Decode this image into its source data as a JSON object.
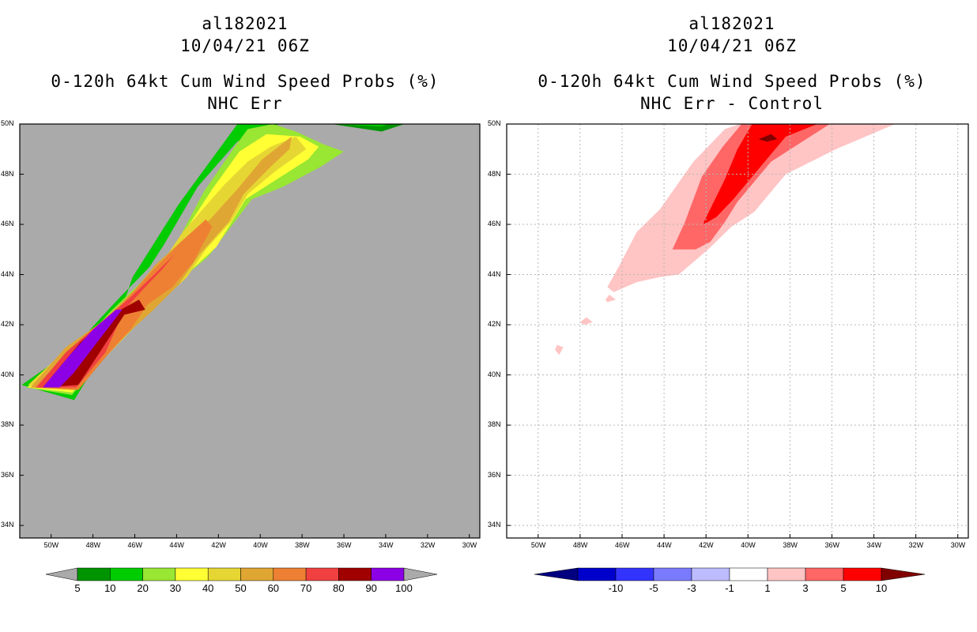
{
  "chart_data": [
    {
      "type": "heatmap",
      "storm_id": "al182021",
      "datetime": "10/04/21 06Z",
      "title": "0-120h 64kt Cum Wind Speed Probs (%)",
      "subtitle": "NHC Err",
      "xlim": [
        -51.5,
        -29.5
      ],
      "ylim": [
        33.5,
        50
      ],
      "x_ticks": [
        {
          "value": -50,
          "label": "50W"
        },
        {
          "value": -48,
          "label": "48W"
        },
        {
          "value": -46,
          "label": "46W"
        },
        {
          "value": -44,
          "label": "44W"
        },
        {
          "value": -42,
          "label": "42W"
        },
        {
          "value": -40,
          "label": "40W"
        },
        {
          "value": -38,
          "label": "38W"
        },
        {
          "value": -36,
          "label": "36W"
        },
        {
          "value": -34,
          "label": "34W"
        },
        {
          "value": -32,
          "label": "32W"
        },
        {
          "value": -30,
          "label": "30W"
        }
      ],
      "y_ticks": [
        {
          "value": 34,
          "label": "34N"
        },
        {
          "value": 36,
          "label": "36N"
        },
        {
          "value": 38,
          "label": "38N"
        },
        {
          "value": 40,
          "label": "40N"
        },
        {
          "value": 42,
          "label": "42N"
        },
        {
          "value": 44,
          "label": "44N"
        },
        {
          "value": 46,
          "label": "46N"
        },
        {
          "value": 48,
          "label": "48N"
        },
        {
          "value": 50,
          "label": "50N"
        }
      ],
      "background": "#aaaaaa",
      "colorbar": {
        "levels": [
          "5",
          "10",
          "20",
          "30",
          "40",
          "50",
          "60",
          "70",
          "80",
          "90",
          "100"
        ],
        "colors": [
          "#009400",
          "#00cc00",
          "#99e633",
          "#ffff33",
          "#e6d633",
          "#e0a633",
          "#ee8033",
          "#f04040",
          "#a00000",
          "#8c00e6"
        ],
        "extend_low_color": "#aaaaaa",
        "extend_high_color": "#aaaaaa"
      },
      "bands": [
        {
          "level": 5,
          "color": "#009400",
          "lon": [
            -51.4,
            -49.0,
            -47.7,
            -46.7,
            -45.3,
            -44.6,
            -43.0,
            -41.1,
            -39.1,
            -36.6,
            -34.2,
            -33.1,
            -37.3,
            -41.0,
            -43.9,
            -46.1,
            -47.2,
            -48.9
          ],
          "lat": [
            39.6,
            41.0,
            42.2,
            43.1,
            44.3,
            45.2,
            47.5,
            49.3,
            50.0,
            50.0,
            49.7,
            50.0,
            50.1,
            50.1,
            46.8,
            43.9,
            41.3,
            39.0
          ]
        },
        {
          "level": 10,
          "color": "#00cc00",
          "lon": [
            -51.4,
            -49.0,
            -47.7,
            -46.7,
            -45.3,
            -44.6,
            -43.0,
            -41.1,
            -39.1,
            -36.6,
            -34.2,
            -33.9,
            -37.3,
            -41.0,
            -43.9,
            -46.1,
            -47.2,
            -48.9
          ],
          "lat": [
            39.6,
            41.0,
            42.2,
            43.1,
            44.3,
            45.2,
            47.5,
            49.3,
            50.0,
            50.0,
            49.9,
            50.0,
            50.1,
            50.1,
            46.8,
            43.9,
            41.3,
            39.0
          ]
        },
        {
          "level": 20,
          "color": "#99e633",
          "lon": [
            -51.2,
            -48.8,
            -47.2,
            -46.2,
            -44.9,
            -44.1,
            -42.7,
            -41.3,
            -40.6,
            -39.4,
            -38.3,
            -37.0,
            -36.0,
            -37.1,
            -38.9,
            -40.4,
            -42.5,
            -43.8,
            -45.1,
            -46.2,
            -47.9,
            -49.0
          ],
          "lat": [
            39.5,
            41.0,
            42.5,
            43.3,
            44.3,
            45.1,
            47.3,
            49.0,
            49.8,
            50.0,
            49.7,
            49.2,
            48.9,
            48.3,
            47.5,
            47.0,
            44.7,
            43.8,
            42.6,
            41.8,
            40.3,
            39.2
          ]
        },
        {
          "level": 30,
          "color": "#ffff33",
          "lon": [
            -51.1,
            -49.2,
            -47.6,
            -46.0,
            -45.0,
            -44.1,
            -42.3,
            -41.0,
            -39.7,
            -38.1,
            -37.2,
            -37.7,
            -39.2,
            -40.7,
            -42.1,
            -43.4,
            -44.8,
            -45.7,
            -47.3,
            -49.0
          ],
          "lat": [
            39.5,
            40.8,
            42.0,
            43.3,
            44.2,
            45.1,
            47.4,
            48.9,
            49.6,
            49.5,
            49.1,
            48.6,
            47.8,
            47.0,
            45.1,
            44.1,
            43.0,
            42.2,
            40.8,
            39.3
          ]
        },
        {
          "level": 40,
          "color": "#e6d633",
          "lon": [
            -51.1,
            -49.3,
            -47.6,
            -46.0,
            -45.0,
            -43.7,
            -41.7,
            -40.6,
            -39.5,
            -38.3,
            -37.8,
            -39.3,
            -40.6,
            -41.4,
            -42.6,
            -43.5,
            -44.9,
            -45.9,
            -47.3,
            -48.9
          ],
          "lat": [
            39.6,
            41.0,
            42.1,
            43.2,
            44.1,
            45.7,
            47.6,
            48.5,
            49.1,
            49.5,
            49.0,
            48.1,
            47.2,
            46.1,
            45.0,
            43.9,
            42.8,
            42.0,
            40.8,
            39.4
          ]
        },
        {
          "level": 50,
          "color": "#e0a633",
          "lon": [
            -51.0,
            -49.3,
            -47.6,
            -46.0,
            -45.0,
            -43.8,
            -42.4,
            -41.1,
            -39.9,
            -38.5,
            -38.6,
            -39.5,
            -40.8,
            -41.5,
            -42.9,
            -43.9,
            -45.1,
            -46.4,
            -47.4,
            -48.9
          ],
          "lat": [
            39.5,
            41.1,
            42.1,
            43.4,
            44.4,
            45.3,
            46.2,
            47.4,
            48.6,
            49.5,
            49.0,
            48.3,
            47.2,
            46.1,
            44.8,
            43.6,
            42.6,
            41.6,
            40.8,
            39.4
          ]
        },
        {
          "level": 60,
          "color": "#ee8033",
          "lon": [
            -50.8,
            -49.3,
            -47.5,
            -46.2,
            -45.1,
            -43.8,
            -42.6,
            -42.3,
            -43.2,
            -44.2,
            -45.4,
            -46.2,
            -47.3,
            -48.7
          ],
          "lat": [
            39.5,
            40.8,
            42.0,
            43.2,
            44.2,
            45.3,
            46.2,
            45.9,
            44.5,
            43.5,
            42.8,
            41.8,
            40.8,
            39.4
          ]
        },
        {
          "level": 70,
          "color": "#f04040",
          "lon": [
            -50.7,
            -49.3,
            -47.9,
            -46.2,
            -45.2,
            -44.1,
            -44.7,
            -45.5,
            -46.5,
            -47.4,
            -48.8
          ],
          "lat": [
            39.5,
            40.9,
            41.9,
            43.1,
            43.9,
            44.8,
            44.2,
            43.5,
            42.6,
            40.9,
            39.5
          ]
        },
        {
          "level": 80,
          "color": "#a00000",
          "lon": [
            -50.4,
            -48.6,
            -47.1,
            -45.8,
            -45.5,
            -46.5,
            -47.6,
            -48.7
          ],
          "lat": [
            39.5,
            41.3,
            42.4,
            43.0,
            42.6,
            42.4,
            41.0,
            39.6
          ]
        },
        {
          "level": 100,
          "color": "#8c00e6",
          "lon": [
            -50.4,
            -49.1,
            -48.0,
            -46.9,
            -46.6,
            -47.8,
            -48.9,
            -49.6
          ],
          "lat": [
            39.5,
            40.8,
            41.8,
            42.6,
            42.6,
            41.3,
            40.1,
            39.5
          ]
        }
      ]
    },
    {
      "type": "heatmap",
      "storm_id": "al182021",
      "datetime": "10/04/21 06Z",
      "title": "0-120h 64kt Cum Wind Speed Probs (%)",
      "subtitle": "NHC Err - Control",
      "xlim": [
        -51.5,
        -29.5
      ],
      "ylim": [
        33.5,
        50
      ],
      "x_ticks": [
        {
          "value": -50,
          "label": "50W"
        },
        {
          "value": -48,
          "label": "48W"
        },
        {
          "value": -46,
          "label": "46W"
        },
        {
          "value": -44,
          "label": "44W"
        },
        {
          "value": -42,
          "label": "42W"
        },
        {
          "value": -40,
          "label": "40W"
        },
        {
          "value": -38,
          "label": "38W"
        },
        {
          "value": -36,
          "label": "36W"
        },
        {
          "value": -34,
          "label": "34W"
        },
        {
          "value": -32,
          "label": "32W"
        },
        {
          "value": -30,
          "label": "30W"
        }
      ],
      "y_ticks": [
        {
          "value": 34,
          "label": "34N"
        },
        {
          "value": 36,
          "label": "36N"
        },
        {
          "value": 38,
          "label": "38N"
        },
        {
          "value": 40,
          "label": "40N"
        },
        {
          "value": 42,
          "label": "42N"
        },
        {
          "value": 44,
          "label": "44N"
        },
        {
          "value": 46,
          "label": "46N"
        },
        {
          "value": 48,
          "label": "48N"
        },
        {
          "value": 50,
          "label": "50N"
        }
      ],
      "grid": true,
      "background": "#ffffff",
      "colorbar": {
        "levels": [
          "-10",
          "-5",
          "-3",
          "-1",
          "1",
          "3",
          "5",
          "10"
        ],
        "colors": [
          "#0000cc",
          "#3333ff",
          "#7a7aff",
          "#bcbcff",
          "#ffffff",
          "#ffc4c4",
          "#ff6666",
          "#ff0000"
        ],
        "extend_low_color": "#000080",
        "extend_high_color": "#800000"
      },
      "bands": [
        {
          "level": 1,
          "color": "#ffc4c4",
          "lon": [
            -46.7,
            -46.1,
            -45.3,
            -44.2,
            -42.6,
            -41.1,
            -40.4,
            -38.7,
            -36.6,
            -33.0,
            -35.8,
            -38.2,
            -39.7,
            -40.8,
            -41.9,
            -43.3,
            -44.2,
            -45.3,
            -46.4
          ],
          "lat": [
            43.5,
            44.4,
            45.7,
            46.6,
            48.5,
            49.8,
            50.0,
            50.0,
            50.0,
            50.0,
            49.0,
            48.0,
            46.5,
            45.9,
            45.0,
            44.0,
            43.9,
            43.7,
            43.3
          ]
        },
        {
          "level": 3,
          "color": "#ff6666",
          "lon": [
            -43.6,
            -43.0,
            -42.2,
            -41.2,
            -40.3,
            -38.6,
            -36.1,
            -38.9,
            -40.5,
            -41.1,
            -41.8,
            -42.5,
            -43.2
          ],
          "lat": [
            45.0,
            46.1,
            47.9,
            49.1,
            50.0,
            50.0,
            50.0,
            48.5,
            46.9,
            46.1,
            45.3,
            45.0,
            45.0
          ]
        },
        {
          "level": 5,
          "color": "#ff0000",
          "lon": [
            -42.1,
            -41.1,
            -40.5,
            -39.8,
            -39.1,
            -37.9,
            -36.7,
            -38.2,
            -39.6,
            -40.7,
            -41.5,
            -42.1
          ],
          "lat": [
            46.1,
            47.8,
            49.0,
            50.0,
            50.0,
            50.0,
            50.0,
            49.5,
            48.1,
            47.0,
            46.3,
            46.0
          ]
        },
        {
          "level": 10,
          "color": "#800000",
          "lon": [
            -39.5,
            -38.9,
            -38.6,
            -39.1
          ],
          "lat": [
            49.4,
            49.6,
            49.4,
            49.3
          ]
        },
        {
          "level": 1,
          "color": "#ffc4c4",
          "lon": [
            -47.8,
            -47.4,
            -47.7,
            -48.0
          ],
          "lat": [
            42.0,
            42.1,
            42.3,
            42.1
          ]
        },
        {
          "level": 1,
          "color": "#ffc4c4",
          "lon": [
            -49.0,
            -48.8,
            -49.1,
            -49.2
          ],
          "lat": [
            40.8,
            41.1,
            41.2,
            41.0
          ]
        },
        {
          "level": 1,
          "color": "#ffc4c4",
          "lon": [
            -46.7,
            -46.3,
            -46.6,
            -46.8
          ],
          "lat": [
            42.9,
            43.0,
            43.2,
            43.0
          ]
        }
      ]
    }
  ]
}
